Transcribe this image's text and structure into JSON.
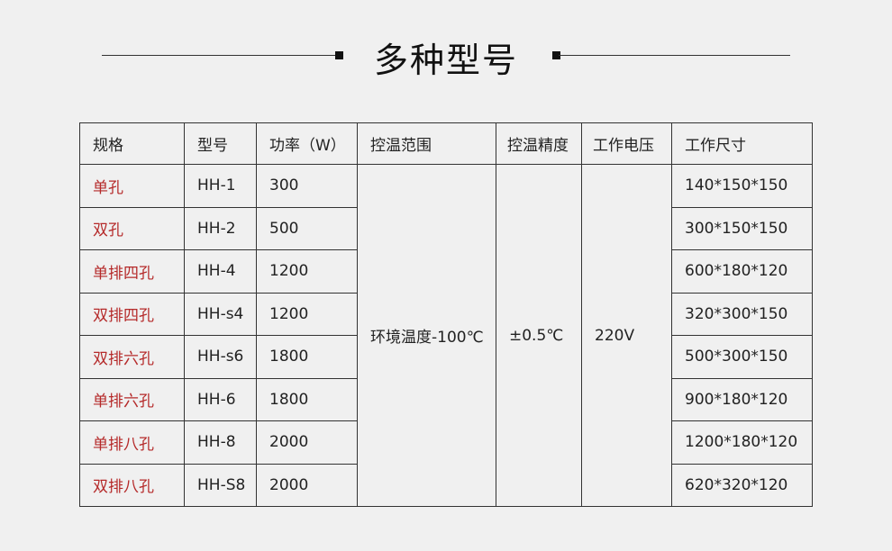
{
  "title": "多种型号",
  "colors": {
    "spec_text": "#b52a2a",
    "background": "#f0f0f0",
    "border": "#333333"
  },
  "table": {
    "headers": [
      "规格",
      "型号",
      "功率（W）",
      "控温范围",
      "控温精度",
      "工作电压",
      "工作尺寸"
    ],
    "shared": {
      "range": "环境温度-100℃",
      "precision": "±0.5℃",
      "voltage": "220V"
    },
    "rows": [
      {
        "spec": "单孔",
        "model": "HH-1",
        "power": "300",
        "size": "140*150*150"
      },
      {
        "spec": "双孔",
        "model": "HH-2",
        "power": "500",
        "size": "300*150*150"
      },
      {
        "spec": "单排四孔",
        "model": "HH-4",
        "power": "1200",
        "size": "600*180*120"
      },
      {
        "spec": "双排四孔",
        "model": "HH-s4",
        "power": "1200",
        "size": "320*300*150"
      },
      {
        "spec": "双排六孔",
        "model": "HH-s6",
        "power": "1800",
        "size": "500*300*150"
      },
      {
        "spec": "单排六孔",
        "model": "HH-6",
        "power": "1800",
        "size": "900*180*120"
      },
      {
        "spec": "单排八孔",
        "model": "HH-8",
        "power": "2000",
        "size": "1200*180*120"
      },
      {
        "spec": "双排八孔",
        "model": "HH-S8",
        "power": "2000",
        "size": "620*320*120"
      }
    ]
  }
}
